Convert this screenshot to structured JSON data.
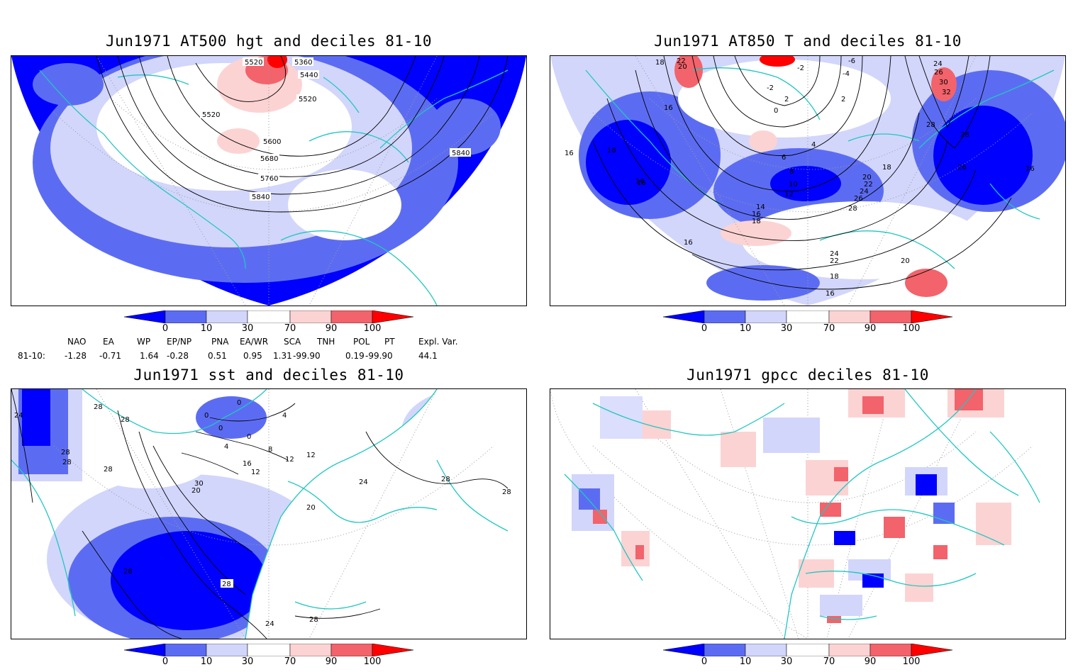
{
  "colors": {
    "below_0": "#0000ff",
    "d0_10": "#5c6cf2",
    "d10_30": "#d2d6fb",
    "d30_70": "#ffffff",
    "d70_90": "#fcd3d3",
    "d90_100": "#f2636b",
    "above_100": "#ff0000",
    "coast": "#20c8c0",
    "contour": "#000000"
  },
  "colorbar_ticks": [
    "0",
    "10",
    "30",
    "70",
    "90",
    "100"
  ],
  "panels": [
    {
      "id": "hgt500",
      "title": "Jun1971 AT500 hgt and deciles 81-10",
      "contour_labels": [
        "5520",
        "5360",
        "5440",
        "5520",
        "5520",
        "5600",
        "5680",
        "5760",
        "5840",
        "5840"
      ]
    },
    {
      "id": "t850",
      "title": "Jun1971 AT850 T and deciles 81-10",
      "contour_labels": [
        "18",
        "22",
        "20",
        "-6",
        "-4",
        "-2",
        "-2",
        "2",
        "0",
        "2",
        "24",
        "26",
        "30",
        "32",
        "28",
        "28",
        "16",
        "18",
        "16",
        "6",
        "4",
        "8",
        "10",
        "12",
        "14",
        "16",
        "18",
        "20",
        "22",
        "24",
        "26",
        "28",
        "18",
        "26",
        "16",
        "16",
        "24",
        "22",
        "20",
        "18",
        "16",
        "16",
        "16"
      ]
    },
    {
      "id": "sst",
      "title": "Jun1971 sst and deciles 81-10",
      "contour_labels": [
        "24",
        "28",
        "28",
        "28",
        "28",
        "0",
        "0",
        "0",
        "4",
        "0",
        "4",
        "8",
        "12",
        "12",
        "16",
        "12",
        "30",
        "20",
        "24",
        "20",
        "28",
        "28",
        "28",
        "28",
        "24",
        "28",
        "28"
      ]
    },
    {
      "id": "gpcc",
      "title": "Jun1971 gpcc deciles 81-10",
      "contour_labels": []
    }
  ],
  "index_table": {
    "headers": [
      "NAO",
      "EA",
      "WP",
      "EP/NP",
      "PNA",
      "EA/WR",
      "SCA",
      "TNH",
      "POL",
      "PT",
      "Expl. Var."
    ],
    "row_label": "81-10:",
    "values": [
      "-1.28",
      "-0.71",
      "1.64",
      "-0.28",
      "0.51",
      "0.95",
      "1.31",
      "-99.90",
      "0.19",
      "-99.90",
      "44.1"
    ]
  }
}
